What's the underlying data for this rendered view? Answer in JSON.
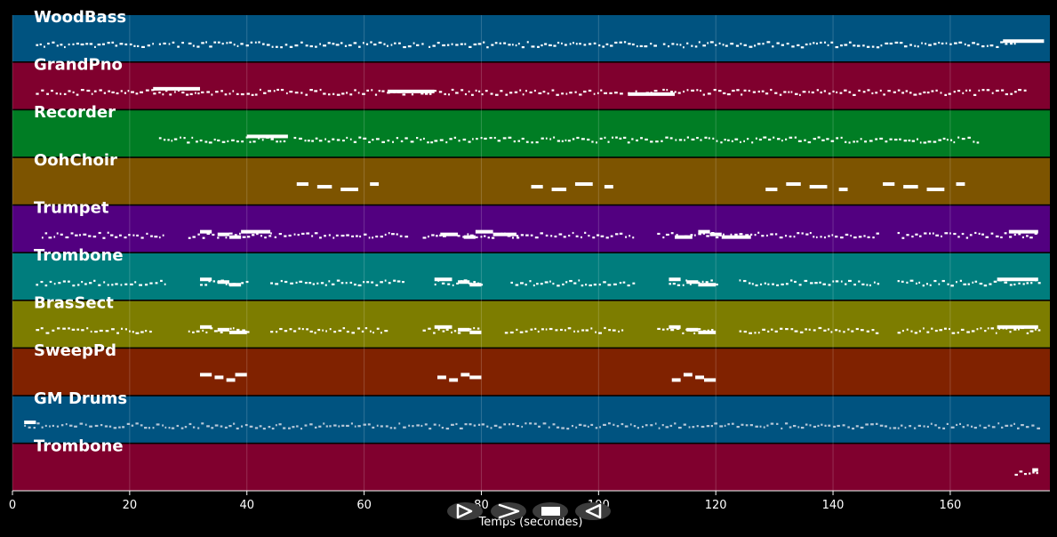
{
  "axis": {
    "xlabel": "Temps (secondes)",
    "ticks": [
      0,
      20,
      40,
      60,
      80,
      100,
      120,
      140,
      160
    ],
    "xlim": [
      0,
      177
    ]
  },
  "tracks": [
    {
      "name": "WoodBass",
      "color": "#005380",
      "segments": [
        [
          4,
          24
        ],
        [
          25,
          29
        ],
        [
          30,
          70
        ],
        [
          71,
          110
        ],
        [
          111,
          171
        ]
      ],
      "long_notes": [
        [
          169,
          176
        ]
      ]
    },
    {
      "name": "GrandPno",
      "color": "#80002e",
      "segments": [
        [
          4,
          24
        ],
        [
          24,
          64
        ],
        [
          65,
          104
        ],
        [
          105,
          173
        ]
      ],
      "long_notes": [
        [
          24,
          32
        ],
        [
          64,
          72
        ],
        [
          105,
          113
        ]
      ]
    },
    {
      "name": "Recorder",
      "color": "#007d24",
      "segments": [
        [
          25,
          47
        ],
        [
          48,
          165
        ]
      ],
      "long_notes": [
        [
          40,
          47
        ]
      ]
    },
    {
      "name": "OohChoir",
      "color": "#7d5400",
      "segments": [],
      "long_notes": [
        [
          48.5,
          50.5
        ],
        [
          52,
          54.5
        ],
        [
          56,
          59
        ],
        [
          61,
          62.5
        ],
        [
          88.5,
          90.5
        ],
        [
          92,
          94.5
        ],
        [
          96,
          99
        ],
        [
          101,
          102.5
        ],
        [
          128.5,
          130.5
        ],
        [
          132,
          134.5
        ],
        [
          136,
          139
        ],
        [
          141,
          142.5
        ],
        [
          148.5,
          150.5
        ],
        [
          152,
          154.5
        ],
        [
          156,
          159
        ],
        [
          161,
          162.5
        ]
      ]
    },
    {
      "name": "Trumpet",
      "color": "#520080",
      "segments": [
        [
          5,
          26
        ],
        [
          30,
          44
        ],
        [
          44,
          67
        ],
        [
          70,
          86
        ],
        [
          86,
          106
        ],
        [
          110,
          124
        ],
        [
          124,
          148
        ],
        [
          151,
          166
        ],
        [
          166,
          175
        ]
      ],
      "long_notes": [
        [
          32,
          34
        ],
        [
          35,
          37
        ],
        [
          37,
          39
        ],
        [
          39,
          44
        ],
        [
          73,
          76
        ],
        [
          77,
          79
        ],
        [
          79,
          82
        ],
        [
          82,
          86
        ],
        [
          113,
          116
        ],
        [
          117,
          119
        ],
        [
          119,
          121
        ],
        [
          121,
          126
        ],
        [
          170,
          175
        ]
      ]
    },
    {
      "name": "Trombone",
      "color": "#007d7d",
      "segments": [
        [
          4,
          26
        ],
        [
          32,
          40
        ],
        [
          44,
          67
        ],
        [
          72,
          80
        ],
        [
          85,
          106
        ],
        [
          112,
          120
        ],
        [
          124,
          148
        ],
        [
          151,
          175
        ]
      ],
      "long_notes": [
        [
          32,
          34
        ],
        [
          35,
          37
        ],
        [
          37,
          39
        ],
        [
          72,
          75
        ],
        [
          76,
          78
        ],
        [
          78,
          80
        ],
        [
          112,
          114
        ],
        [
          115,
          117
        ],
        [
          117,
          120
        ],
        [
          168,
          175
        ]
      ]
    },
    {
      "name": "BrasSect",
      "color": "#7d7d00",
      "segments": [
        [
          4,
          24
        ],
        [
          30,
          40
        ],
        [
          44,
          64
        ],
        [
          70,
          80
        ],
        [
          84,
          104
        ],
        [
          110,
          120
        ],
        [
          124,
          148
        ],
        [
          151,
          175
        ]
      ],
      "long_notes": [
        [
          32,
          34
        ],
        [
          35,
          37
        ],
        [
          37,
          40
        ],
        [
          72,
          75
        ],
        [
          76,
          78
        ],
        [
          78,
          80
        ],
        [
          112,
          114
        ],
        [
          115,
          117
        ],
        [
          117,
          120
        ],
        [
          168,
          175
        ]
      ]
    },
    {
      "name": "SweepPd",
      "color": "#802200",
      "segments": [],
      "long_notes": [
        [
          32,
          34
        ],
        [
          34.5,
          36
        ],
        [
          36.5,
          38
        ],
        [
          38,
          40
        ],
        [
          72.5,
          74
        ],
        [
          74.5,
          76
        ],
        [
          76.5,
          78
        ],
        [
          78,
          80
        ],
        [
          112.5,
          114
        ],
        [
          114.5,
          116
        ],
        [
          116.5,
          118
        ],
        [
          118,
          120
        ]
      ]
    },
    {
      "name": "GM Drums",
      "color": "#005380",
      "segments": [
        [
          2,
          175
        ]
      ],
      "long_notes": [
        [
          2,
          4
        ]
      ]
    },
    {
      "name": "Trombone",
      "color": "#80002e",
      "segments": [
        [
          171,
          175
        ]
      ],
      "long_notes": [
        [
          174,
          175
        ]
      ]
    }
  ],
  "controls": {
    "buttons": [
      {
        "name": "forward-button",
        "icon": "play-outline-icon"
      },
      {
        "name": "next-button",
        "icon": "chevron-right-icon"
      },
      {
        "name": "stop-button",
        "icon": "stop-icon"
      },
      {
        "name": "back-button",
        "icon": "play-reverse-outline-icon"
      }
    ]
  },
  "colors": {
    "background": "#000000",
    "notes": "#ffffff",
    "controls": "#3c3c3c"
  }
}
